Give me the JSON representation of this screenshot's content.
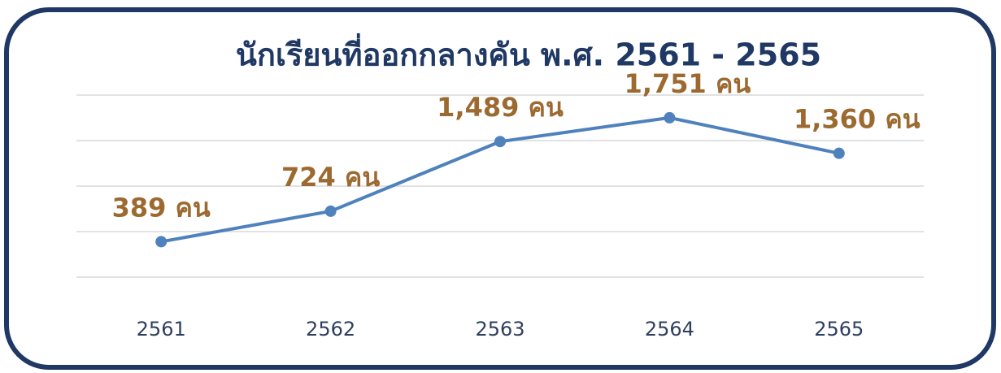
{
  "chart_data": {
    "type": "line",
    "title": "นักเรียนที่ออกกลางคัน พ.ศ. 2561 - 2565",
    "categories": [
      "2561",
      "2562",
      "2563",
      "2564",
      "2565"
    ],
    "series": [
      {
        "name": "นักเรียนที่ออกกลางคัน",
        "color": "#4f81bd",
        "values": [
          389,
          724,
          1489,
          1751,
          1360
        ],
        "value_labels": [
          "389 คน",
          "724 คน",
          "1,489 คน",
          "1,751 คน",
          "1,360 คน"
        ]
      }
    ],
    "ylim": [
      0,
      2000
    ],
    "yticks": [
      0,
      500,
      1000,
      1500,
      2000
    ],
    "grid": true
  }
}
